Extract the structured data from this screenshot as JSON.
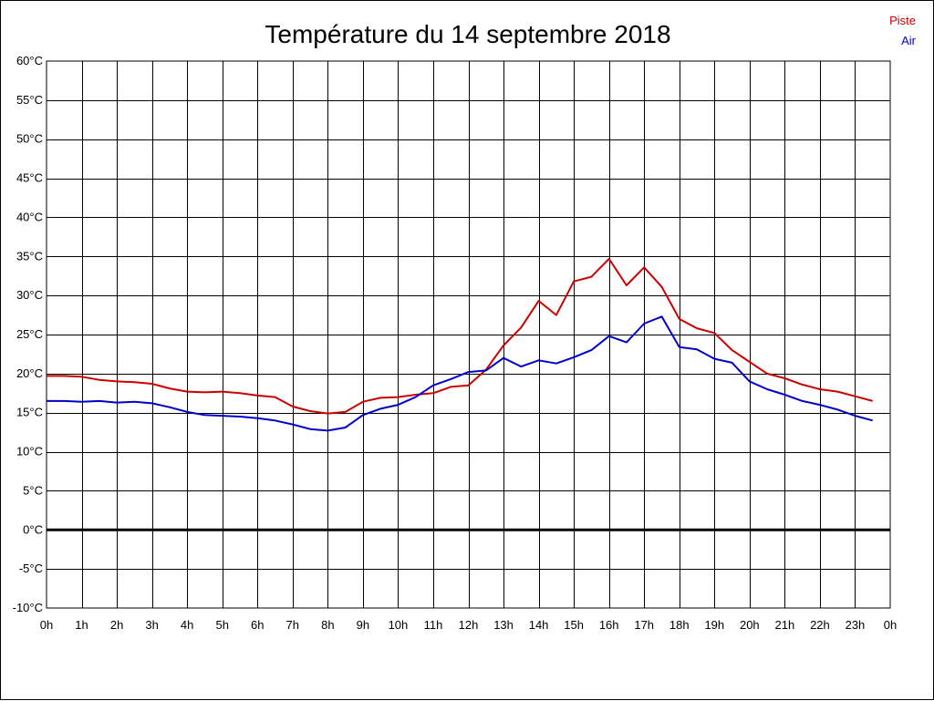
{
  "chart_data": {
    "type": "line",
    "title": "Température du 14 septembre 2018",
    "xlabel": "",
    "ylabel": "",
    "grid": true,
    "legend_placement": "top-right",
    "xlim": [
      0,
      24
    ],
    "ylim": [
      -10,
      60
    ],
    "x_tick_labels": [
      "0h",
      "1h",
      "2h",
      "3h",
      "4h",
      "5h",
      "6h",
      "7h",
      "8h",
      "9h",
      "10h",
      "11h",
      "12h",
      "13h",
      "14h",
      "15h",
      "16h",
      "17h",
      "18h",
      "19h",
      "20h",
      "21h",
      "22h",
      "23h",
      "0h"
    ],
    "y_ticks": [
      60,
      55,
      50,
      45,
      40,
      35,
      30,
      25,
      20,
      15,
      10,
      5,
      0,
      -5,
      -10
    ],
    "y_tick_labels": [
      "60°C",
      "55°C",
      "50°C",
      "45°C",
      "40°C",
      "35°C",
      "30°C",
      "25°C",
      "20°C",
      "15°C",
      "10°C",
      "5°C",
      "0°C",
      "-5°C",
      "-10°C"
    ],
    "x": [
      0,
      0.5,
      1,
      1.5,
      2,
      2.5,
      3,
      3.5,
      4,
      4.5,
      5,
      5.5,
      6,
      6.5,
      7,
      7.5,
      8,
      8.5,
      9,
      9.5,
      10,
      10.5,
      11,
      11.5,
      12,
      12.5,
      13,
      13.5,
      14,
      14.5,
      15,
      15.5,
      16,
      16.5,
      17,
      17.5,
      18,
      18.5,
      19,
      19.5,
      20,
      20.5,
      21,
      21.5,
      22,
      22.5,
      23,
      23.5
    ],
    "series": [
      {
        "name": "Piste",
        "color": "#cc0000",
        "values": [
          19.7,
          19.7,
          19.6,
          19.2,
          19.0,
          18.9,
          18.7,
          18.1,
          17.7,
          17.6,
          17.7,
          17.5,
          17.2,
          17.0,
          15.8,
          15.2,
          14.9,
          15.1,
          16.4,
          16.9,
          17.0,
          17.3,
          17.5,
          18.3,
          18.5,
          20.5,
          23.6,
          25.9,
          29.3,
          27.5,
          31.8,
          32.4,
          34.7,
          31.3,
          33.6,
          31.1,
          27.0,
          25.8,
          25.2,
          23.0,
          21.5,
          20.0,
          19.4,
          18.6,
          18.0,
          17.7,
          17.1,
          16.5
        ]
      },
      {
        "name": "Air",
        "color": "#0000cc",
        "values": [
          16.5,
          16.5,
          16.4,
          16.5,
          16.3,
          16.4,
          16.2,
          15.7,
          15.1,
          14.7,
          14.6,
          14.5,
          14.3,
          14.0,
          13.5,
          12.9,
          12.7,
          13.1,
          14.7,
          15.5,
          16.0,
          17.0,
          18.5,
          19.3,
          20.2,
          20.4,
          22.0,
          20.9,
          21.7,
          21.3,
          22.1,
          23.0,
          24.8,
          24.0,
          26.4,
          27.3,
          23.4,
          23.1,
          21.9,
          21.4,
          19.0,
          18.0,
          17.3,
          16.5,
          16.0,
          15.4,
          14.6,
          14.0
        ]
      }
    ],
    "zero_line_color": "#000000"
  }
}
